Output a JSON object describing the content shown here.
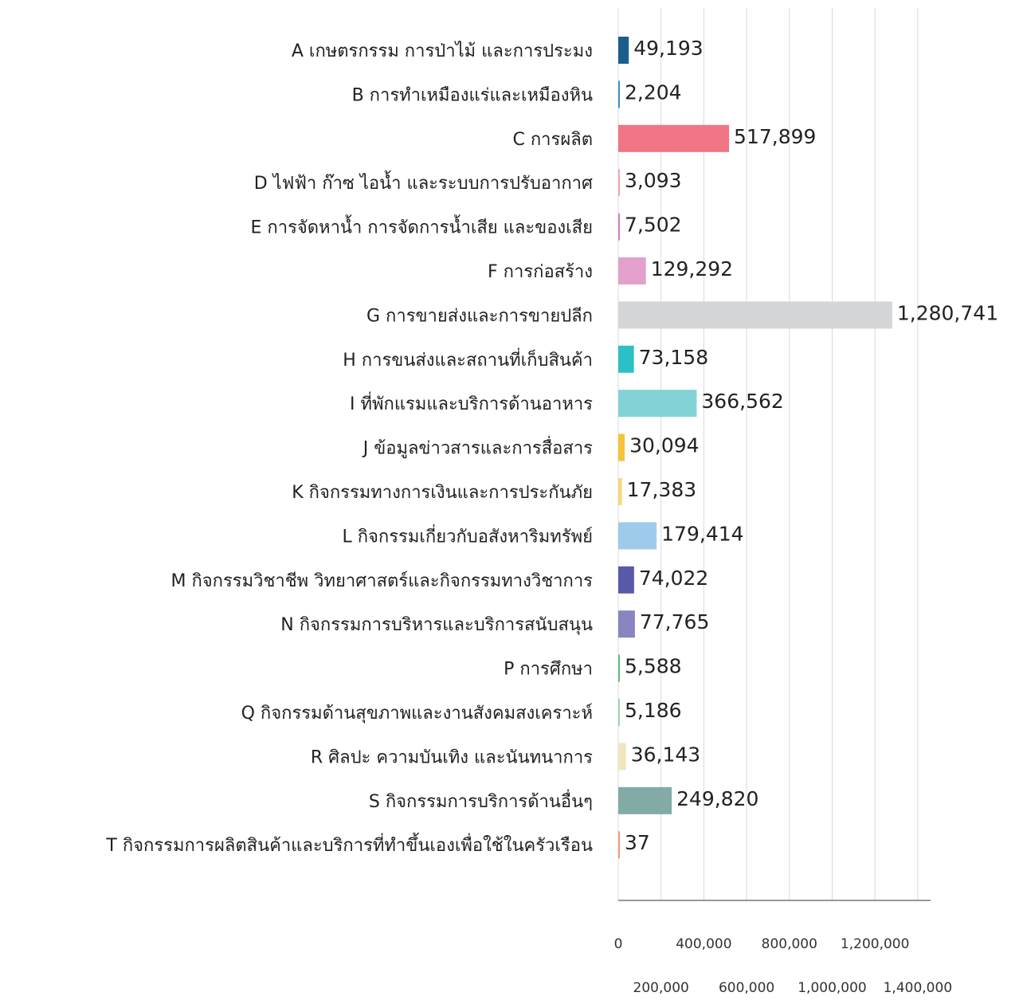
{
  "chart_data": {
    "type": "hbar",
    "categories": [
      "A เกษตรกรรม การป่าไม้ และการประมง",
      "B การทำเหมืองแร่และเหมืองหิน",
      "C การผลิต",
      "D ไฟฟ้า ก๊าซ ไอน้ำ และระบบการปรับอากาศ",
      "E การจัดหาน้ำ การจัดการน้ำเสีย และของเสีย",
      "F การก่อสร้าง",
      "G การขายส่งและการขายปลีก",
      "H การขนส่งและสถานที่เก็บสินค้า",
      "I ที่พักแรมและบริการด้านอาหาร",
      "J ข้อมูลข่าวสารและการสื่อสาร",
      "K กิจกรรมทางการเงินและการประกันภัย",
      "L กิจกรรมเกี่ยวกับอสังหาริมทรัพย์",
      "M กิจกรรมวิชาชีพ วิทยาศาสตร์และกิจกรรมทางวิชาการ",
      "N กิจกรรมการบริหารและบริการสนับสนุน",
      "P การศึกษา",
      "Q กิจกรรมด้านสุขภาพและงานสังคมสงเคราะห์",
      "R ศิลปะ ความบันเทิง และนันทนาการ",
      "S กิจกรรมการบริการด้านอื่นๆ",
      "T กิจกรรมการผลิตสินค้าและบริการที่ทำขึ้นเองเพื่อใช้ในครัวเรือน"
    ],
    "values": [
      49193,
      2204,
      517899,
      3093,
      7502,
      129292,
      1280741,
      73158,
      366562,
      30094,
      17383,
      179414,
      74022,
      77765,
      5588,
      5186,
      36143,
      249820,
      37
    ],
    "value_labels": [
      "49,193",
      "2,204",
      "517,899",
      "3,093",
      "7,502",
      "129,292",
      "1,280,741",
      "73,158",
      "366,562",
      "30,094",
      "17,383",
      "179,414",
      "74,022",
      "77,765",
      "5,588",
      "5,186",
      "36,143",
      "249,820",
      "37"
    ],
    "colors": [
      "#1b5e8e",
      "#3b8fc4",
      "#f07585",
      "#f4a6a8",
      "#d47fc0",
      "#e3a0cb",
      "#d3d5d7",
      "#2bbfc6",
      "#82d2d6",
      "#f7c33a",
      "#f9d67a",
      "#9ecbec",
      "#5a58a8",
      "#8884c0",
      "#5dbf7f",
      "#9bd8b0",
      "#efe6be",
      "#82aaa7",
      "#f19a75"
    ],
    "xlim": [
      0,
      1460000
    ],
    "xticks": [
      0,
      {
        "value": 200000,
        "label": "200,000"
      },
      {
        "value": 400000,
        "label": "400,000"
      },
      {
        "value": 600000,
        "label": "600,000"
      },
      {
        "value": 800000,
        "label": "800,000"
      },
      {
        "value": 1000000,
        "label": "1,000,000"
      },
      {
        "value": 1200000,
        "label": "1,200,000"
      },
      {
        "value": 1400000,
        "label": "1,400,000"
      }
    ],
    "grid": true
  }
}
